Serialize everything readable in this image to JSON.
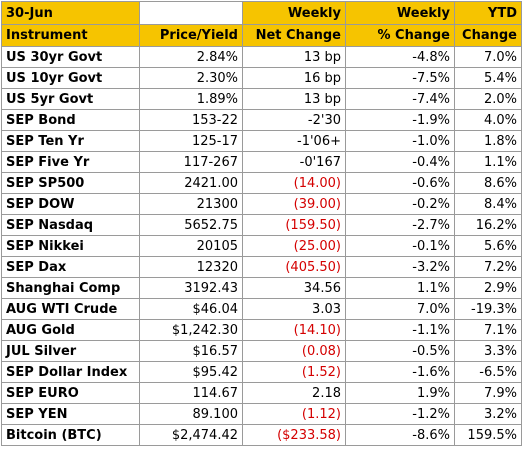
{
  "date": "30-Jun",
  "headers_top": {
    "price": "",
    "net": "Weekly",
    "pct": "Weekly",
    "ytd": "YTD"
  },
  "headers_bottom": {
    "instrument": "Instrument",
    "price": "Price/Yield",
    "net": "Net Change",
    "pct": "% Change",
    "ytd": "Change"
  },
  "rows": [
    {
      "name": "US 30yr Govt",
      "price": "2.84%",
      "net": "13 bp",
      "pct": "-4.8%",
      "ytd": "7.0%",
      "neg": false
    },
    {
      "name": "US 10yr Govt",
      "price": "2.30%",
      "net": "16 bp",
      "pct": "-7.5%",
      "ytd": "5.4%",
      "neg": false
    },
    {
      "name": "US 5yr   Govt",
      "price": "1.89%",
      "net": "13 bp",
      "pct": "-7.4%",
      "ytd": "2.0%",
      "neg": false
    },
    {
      "name": "SEP Bond",
      "price": "153-22",
      "net": "-2'30",
      "pct": "-1.9%",
      "ytd": "4.0%",
      "neg": false
    },
    {
      "name": "SEP Ten Yr",
      "price": "125-17",
      "net": "-1'06+",
      "pct": "-1.0%",
      "ytd": "1.8%",
      "neg": false
    },
    {
      "name": "SEP Five Yr",
      "price": "117-267",
      "net": "-0'167",
      "pct": "-0.4%",
      "ytd": "1.1%",
      "neg": false
    },
    {
      "name": "SEP SP500",
      "price": "2421.00",
      "net": "(14.00)",
      "pct": "-0.6%",
      "ytd": "8.6%",
      "neg": true
    },
    {
      "name": "SEP DOW",
      "price": "21300",
      "net": "(39.00)",
      "pct": "-0.2%",
      "ytd": "8.4%",
      "neg": true
    },
    {
      "name": "SEP Nasdaq",
      "price": "5652.75",
      "net": "(159.50)",
      "pct": "-2.7%",
      "ytd": "16.2%",
      "neg": true
    },
    {
      "name": "SEP Nikkei",
      "price": "20105",
      "net": "(25.00)",
      "pct": "-0.1%",
      "ytd": "5.6%",
      "neg": true
    },
    {
      "name": "SEP Dax",
      "price": "12320",
      "net": "(405.50)",
      "pct": "-3.2%",
      "ytd": "7.2%",
      "neg": true
    },
    {
      "name": "Shanghai Comp",
      "price": "3192.43",
      "net": "34.56",
      "pct": "1.1%",
      "ytd": "2.9%",
      "neg": false
    },
    {
      "name": "AUG WTI Crude",
      "price": "$46.04",
      "net": "3.03",
      "pct": "7.0%",
      "ytd": "-19.3%",
      "neg": false
    },
    {
      "name": "AUG Gold",
      "price": "$1,242.30",
      "net": "(14.10)",
      "pct": "-1.1%",
      "ytd": "7.1%",
      "neg": true
    },
    {
      "name": "JUL Silver",
      "price": "$16.57",
      "net": "(0.08)",
      "pct": "-0.5%",
      "ytd": "3.3%",
      "neg": true
    },
    {
      "name": "SEP Dollar Index",
      "price": "$95.42",
      "net": "(1.52)",
      "pct": "-1.6%",
      "ytd": "-6.5%",
      "neg": true
    },
    {
      "name": "SEP EURO",
      "price": "114.67",
      "net": "2.18",
      "pct": "1.9%",
      "ytd": "7.9%",
      "neg": false
    },
    {
      "name": "SEP YEN",
      "price": "89.100",
      "net": "(1.12)",
      "pct": "-1.2%",
      "ytd": "3.2%",
      "neg": true
    },
    {
      "name": "Bitcoin (BTC)",
      "price": "$2,474.42",
      "net": "($233.58)",
      "pct": "-8.6%",
      "ytd": "159.5%",
      "neg": true
    }
  ],
  "colors": {
    "header_gold": "#f6c400",
    "negative_red": "#d40000",
    "grid": "#9a9a9a"
  }
}
